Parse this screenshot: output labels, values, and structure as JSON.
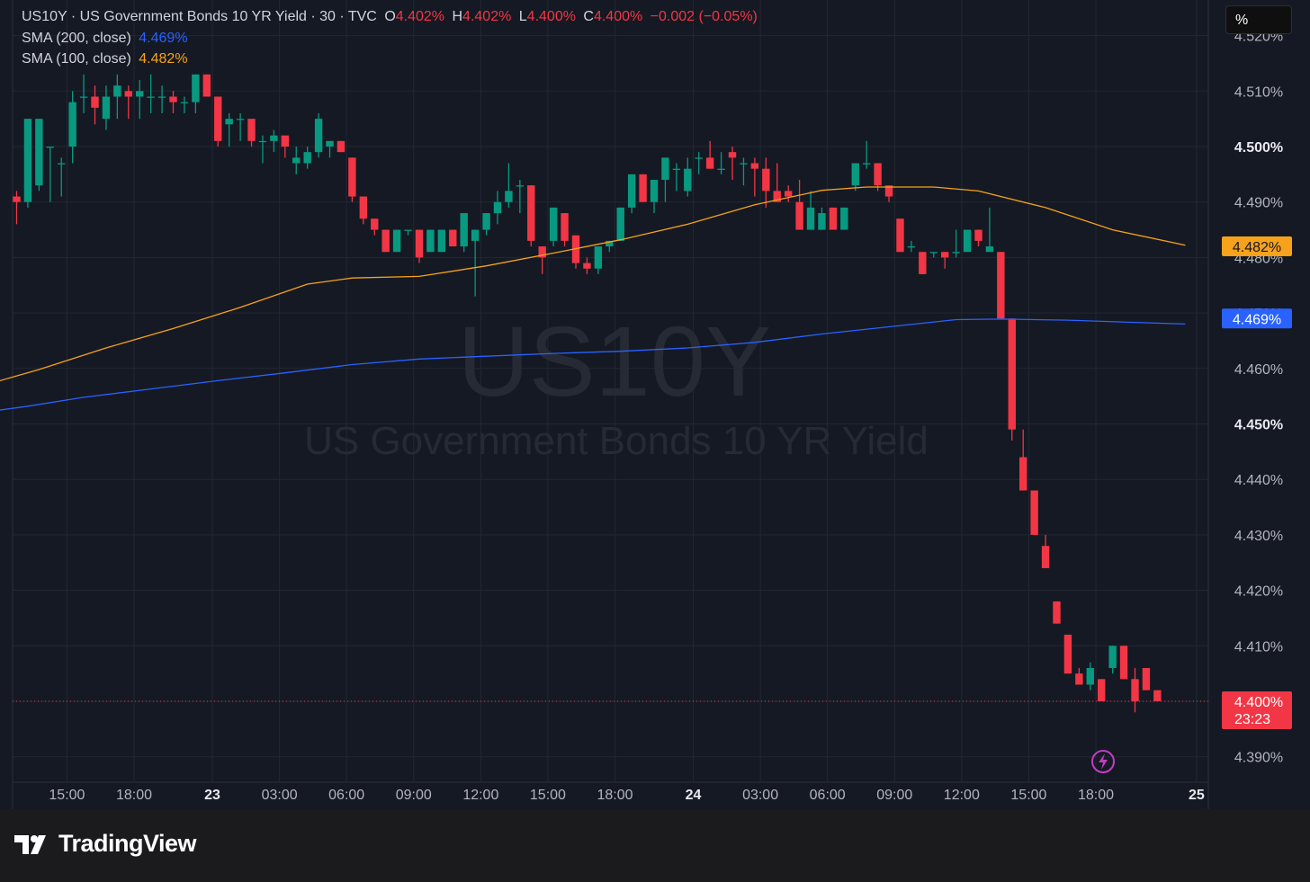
{
  "legend": {
    "symbol_line": "US10Y · US Government Bonds 10 YR Yield · 30 · TVC",
    "open_label": "O",
    "open": "4.402%",
    "high_label": "H",
    "high": "4.402%",
    "low_label": "L",
    "low": "4.400%",
    "close_label": "C",
    "close": "4.400%",
    "change": "−0.002 (−0.05%)",
    "sma200_label": "SMA (200, close)",
    "sma200_value": "4.469%",
    "sma100_label": "SMA (100, close)",
    "sma100_value": "4.482%"
  },
  "toolbar": {
    "percent_label": "%"
  },
  "watermark": {
    "symbol": "US10Y",
    "name": "US Government Bonds 10 YR Yield"
  },
  "brand": {
    "name": "TradingView"
  },
  "colors": {
    "up": "#089981",
    "down": "#f23645",
    "sma200": "#2962ff",
    "sma100": "#f7a21b",
    "background": "#151923"
  },
  "chart_data": {
    "type": "candlestick",
    "interval": "30",
    "y_unit": "%",
    "ylim": [
      4.386,
      4.524
    ],
    "y_ticks": [
      4.39,
      4.4,
      4.41,
      4.42,
      4.43,
      4.44,
      4.45,
      4.46,
      4.47,
      4.48,
      4.49,
      4.5,
      4.51,
      4.52
    ],
    "y_tick_labels": [
      "4.390%",
      "4.400%",
      "4.410%",
      "4.420%",
      "4.430%",
      "4.440%",
      "4.450%",
      "4.460%",
      "4.470%",
      "4.480%",
      "4.490%",
      "4.500%",
      "4.510%",
      "4.520%"
    ],
    "bold_ticks": [
      4.45,
      4.5
    ],
    "x_ticks": [
      {
        "label": "15:00",
        "bar": 4.5,
        "bold": false
      },
      {
        "label": "18:00",
        "bar": 10.5,
        "bold": false
      },
      {
        "label": "23",
        "bar": 17.5,
        "bold": true
      },
      {
        "label": "03:00",
        "bar": 23.5,
        "bold": false
      },
      {
        "label": "06:00",
        "bar": 29.5,
        "bold": false
      },
      {
        "label": "09:00",
        "bar": 35.5,
        "bold": false
      },
      {
        "label": "12:00",
        "bar": 41.5,
        "bold": false
      },
      {
        "label": "15:00",
        "bar": 47.5,
        "bold": false
      },
      {
        "label": "18:00",
        "bar": 53.5,
        "bold": false
      },
      {
        "label": "24",
        "bar": 60.5,
        "bold": true
      },
      {
        "label": "03:00",
        "bar": 66.5,
        "bold": false
      },
      {
        "label": "06:00",
        "bar": 72.5,
        "bold": false
      },
      {
        "label": "09:00",
        "bar": 78.5,
        "bold": false
      },
      {
        "label": "12:00",
        "bar": 84.5,
        "bold": false
      },
      {
        "label": "15:00",
        "bar": 90.5,
        "bold": false
      },
      {
        "label": "18:00",
        "bar": 96.5,
        "bold": false
      },
      {
        "label": "25",
        "bar": 105.5,
        "bold": true
      }
    ],
    "candles": [
      [
        4.491,
        4.492,
        4.486,
        4.49
      ],
      [
        4.49,
        4.505,
        4.489,
        4.505
      ],
      [
        4.493,
        4.505,
        4.492,
        4.505
      ],
      [
        4.5,
        4.5,
        4.49,
        4.5
      ],
      [
        4.497,
        4.498,
        4.491,
        4.497
      ],
      [
        4.5,
        4.51,
        4.497,
        4.508
      ],
      [
        4.509,
        4.513,
        4.506,
        4.509
      ],
      [
        4.509,
        4.511,
        4.504,
        4.507
      ],
      [
        4.505,
        4.511,
        4.503,
        4.509
      ],
      [
        4.509,
        4.513,
        4.505,
        4.511
      ],
      [
        4.51,
        4.511,
        4.505,
        4.509
      ],
      [
        4.509,
        4.512,
        4.505,
        4.51
      ],
      [
        4.509,
        4.513,
        4.506,
        4.509
      ],
      [
        4.509,
        4.511,
        4.506,
        4.509
      ],
      [
        4.509,
        4.51,
        4.506,
        4.508
      ],
      [
        4.508,
        4.509,
        4.506,
        4.508
      ],
      [
        4.508,
        4.513,
        4.506,
        4.513
      ],
      [
        4.513,
        4.513,
        4.509,
        4.509
      ],
      [
        4.509,
        4.509,
        4.5,
        4.501
      ],
      [
        4.504,
        4.506,
        4.5,
        4.505
      ],
      [
        4.505,
        4.506,
        4.501,
        4.505
      ],
      [
        4.505,
        4.505,
        4.5,
        4.501
      ],
      [
        4.501,
        4.502,
        4.497,
        4.501
      ],
      [
        4.501,
        4.503,
        4.499,
        4.502
      ],
      [
        4.502,
        4.502,
        4.498,
        4.5
      ],
      [
        4.497,
        4.5,
        4.495,
        4.498
      ],
      [
        4.497,
        4.5,
        4.496,
        4.499
      ],
      [
        4.499,
        4.506,
        4.498,
        4.505
      ],
      [
        4.5,
        4.501,
        4.498,
        4.501
      ],
      [
        4.501,
        4.501,
        4.499,
        4.499
      ],
      [
        4.498,
        4.498,
        4.49,
        4.491
      ],
      [
        4.491,
        4.491,
        4.486,
        4.487
      ],
      [
        4.487,
        4.487,
        4.484,
        4.485
      ],
      [
        4.485,
        4.485,
        4.481,
        4.481
      ],
      [
        4.481,
        4.485,
        4.481,
        4.485
      ],
      [
        4.485,
        4.485,
        4.484,
        4.485
      ],
      [
        4.485,
        4.485,
        4.479,
        4.48
      ],
      [
        4.481,
        4.485,
        4.481,
        4.485
      ],
      [
        4.481,
        4.485,
        4.481,
        4.485
      ],
      [
        4.485,
        4.485,
        4.482,
        4.482
      ],
      [
        4.482,
        4.488,
        4.481,
        4.488
      ],
      [
        4.483,
        4.485,
        4.473,
        4.485
      ],
      [
        4.485,
        4.488,
        4.484,
        4.488
      ],
      [
        4.488,
        4.492,
        4.486,
        4.49
      ],
      [
        4.49,
        4.497,
        4.489,
        4.492
      ],
      [
        4.493,
        4.494,
        4.488,
        4.493
      ],
      [
        4.493,
        4.493,
        4.482,
        4.483
      ],
      [
        4.482,
        4.482,
        4.477,
        4.48
      ],
      [
        4.483,
        4.489,
        4.482,
        4.489
      ],
      [
        4.488,
        4.488,
        4.482,
        4.483
      ],
      [
        4.484,
        4.484,
        4.478,
        4.479
      ],
      [
        4.479,
        4.48,
        4.477,
        4.478
      ],
      [
        4.478,
        4.482,
        4.477,
        4.482
      ],
      [
        4.482,
        4.483,
        4.481,
        4.483
      ],
      [
        4.483,
        4.489,
        4.483,
        4.489
      ],
      [
        4.489,
        4.495,
        4.488,
        4.495
      ],
      [
        4.495,
        4.495,
        4.49,
        4.49
      ],
      [
        4.49,
        4.494,
        4.488,
        4.494
      ],
      [
        4.494,
        4.498,
        4.49,
        4.498
      ],
      [
        4.496,
        4.497,
        4.492,
        4.496
      ],
      [
        4.492,
        4.498,
        4.491,
        4.496
      ],
      [
        4.498,
        4.499,
        4.495,
        4.498
      ],
      [
        4.498,
        4.501,
        4.496,
        4.496
      ],
      [
        4.496,
        4.499,
        4.495,
        4.496
      ],
      [
        4.499,
        4.5,
        4.494,
        4.498
      ],
      [
        4.497,
        4.498,
        4.493,
        4.497
      ],
      [
        4.497,
        4.498,
        4.491,
        4.496
      ],
      [
        4.496,
        4.498,
        4.489,
        4.492
      ],
      [
        4.492,
        4.497,
        4.49,
        4.49
      ],
      [
        4.492,
        4.493,
        4.49,
        4.491
      ],
      [
        4.49,
        4.494,
        4.485,
        4.485
      ],
      [
        4.485,
        4.492,
        4.485,
        4.489
      ],
      [
        4.485,
        4.489,
        4.485,
        4.488
      ],
      [
        4.489,
        4.489,
        4.485,
        4.485
      ],
      [
        4.485,
        4.489,
        4.485,
        4.489
      ],
      [
        4.493,
        4.497,
        4.492,
        4.497
      ],
      [
        4.497,
        4.501,
        4.496,
        4.497
      ],
      [
        4.497,
        4.497,
        4.492,
        4.493
      ],
      [
        4.493,
        4.493,
        4.49,
        4.491
      ],
      [
        4.487,
        4.487,
        4.481,
        4.481
      ],
      [
        4.482,
        4.483,
        4.481,
        4.482
      ],
      [
        4.481,
        4.481,
        4.477,
        4.477
      ],
      [
        4.481,
        4.481,
        4.48,
        4.481
      ],
      [
        4.481,
        4.481,
        4.478,
        4.48
      ],
      [
        4.481,
        4.485,
        4.48,
        4.481
      ],
      [
        4.481,
        4.484,
        4.481,
        4.485
      ],
      [
        4.485,
        4.485,
        4.482,
        4.483
      ],
      [
        4.481,
        4.489,
        4.481,
        4.482
      ],
      [
        4.481,
        4.481,
        4.469,
        4.469
      ],
      [
        4.469,
        4.469,
        4.447,
        4.449
      ],
      [
        4.444,
        4.449,
        4.438,
        4.438
      ],
      [
        4.438,
        4.438,
        4.43,
        4.43
      ],
      [
        4.428,
        4.43,
        4.424,
        4.424
      ],
      [
        4.418,
        4.418,
        4.414,
        4.414
      ],
      [
        4.412,
        4.412,
        4.405,
        4.405
      ],
      [
        4.405,
        4.406,
        4.403,
        4.403
      ],
      [
        4.403,
        4.407,
        4.402,
        4.406
      ],
      [
        4.404,
        4.404,
        4.4,
        4.4
      ],
      [
        4.406,
        4.41,
        4.405,
        4.41
      ],
      [
        4.41,
        4.41,
        4.404,
        4.404
      ],
      [
        4.404,
        4.406,
        4.398,
        4.4
      ],
      [
        4.406,
        4.406,
        4.402,
        4.402
      ],
      [
        4.402,
        4.402,
        4.4,
        4.4
      ]
    ],
    "series": [
      {
        "name": "SMA (200, close)",
        "color": "#2962ff",
        "points": [
          [
            -1.5,
            4.4525
          ],
          [
            1,
            4.4532
          ],
          [
            6,
            4.4548
          ],
          [
            12,
            4.4563
          ],
          [
            18,
            4.4578
          ],
          [
            24,
            4.4592
          ],
          [
            30,
            4.4607
          ],
          [
            36,
            4.4617
          ],
          [
            42,
            4.4622
          ],
          [
            48,
            4.4627
          ],
          [
            54,
            4.4631
          ],
          [
            60,
            4.4637
          ],
          [
            66,
            4.4647
          ],
          [
            72,
            4.4662
          ],
          [
            78,
            4.4675
          ],
          [
            84,
            4.4688
          ],
          [
            88,
            4.4689
          ],
          [
            94,
            4.4687
          ],
          [
            100,
            4.4683
          ],
          [
            104.5,
            4.468
          ]
        ]
      },
      {
        "name": "SMA (100, close)",
        "color": "#f7a21b",
        "points": [
          [
            -1.5,
            4.4578
          ],
          [
            2,
            4.4598
          ],
          [
            8,
            4.4637
          ],
          [
            14,
            4.4672
          ],
          [
            20,
            4.471
          ],
          [
            26,
            4.4752
          ],
          [
            30,
            4.4763
          ],
          [
            36,
            4.4766
          ],
          [
            42,
            4.4785
          ],
          [
            48,
            4.4808
          ],
          [
            54,
            4.4832
          ],
          [
            60,
            4.486
          ],
          [
            66,
            4.4895
          ],
          [
            72,
            4.4921
          ],
          [
            76,
            4.4927
          ],
          [
            82,
            4.4927
          ],
          [
            86,
            4.492
          ],
          [
            92,
            4.489
          ],
          [
            98,
            4.485
          ],
          [
            104.5,
            4.4822
          ]
        ]
      }
    ],
    "last_price": {
      "value": 4.4,
      "label": "4.400%",
      "countdown": "23:23"
    },
    "sma_labels": [
      {
        "value": 4.482,
        "label": "4.482%",
        "color": "#f7a21b"
      },
      {
        "value": 4.469,
        "label": "4.469%",
        "color": "#2962ff"
      }
    ]
  }
}
